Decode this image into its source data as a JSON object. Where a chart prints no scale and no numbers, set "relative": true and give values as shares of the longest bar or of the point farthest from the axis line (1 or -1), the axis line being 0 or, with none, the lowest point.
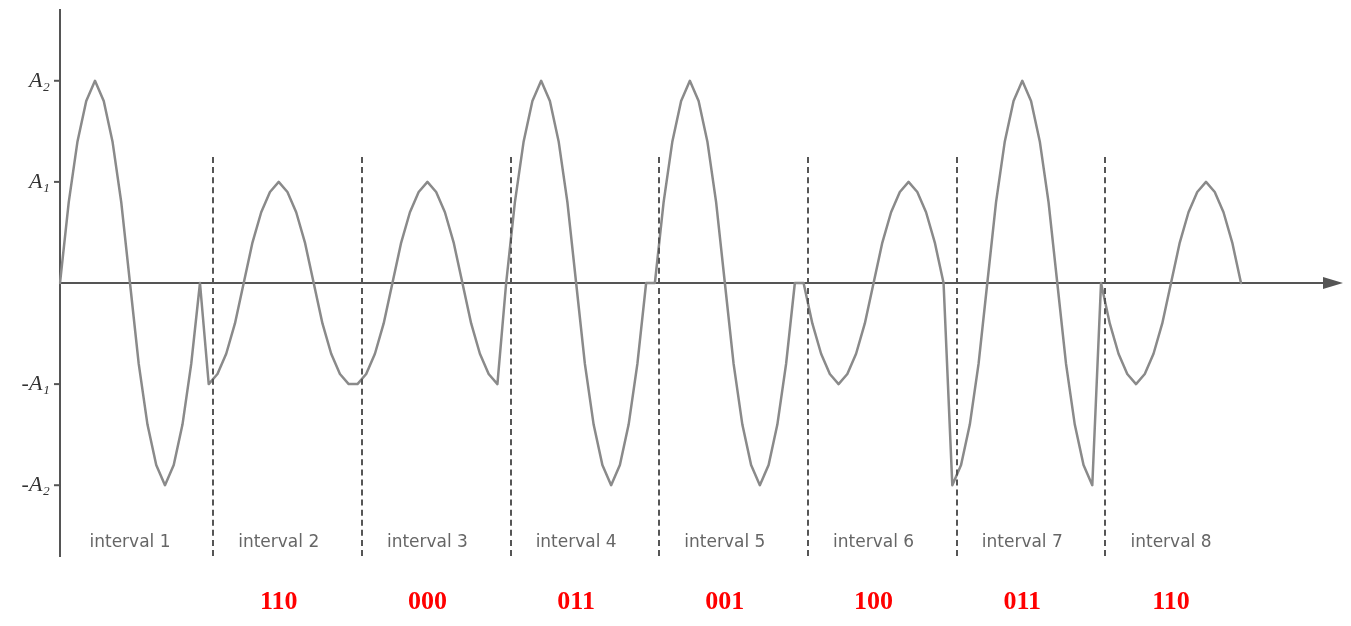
{
  "chart_data": {
    "type": "line",
    "categories": [
      null,
      null,
      null,
      null,
      null,
      null,
      null,
      null,
      "interval 1",
      null,
      null,
      null,
      null,
      null,
      null,
      null,
      null,
      null,
      null,
      null,
      null,
      null,
      null,
      null,
      null,
      "interval 2",
      null,
      null,
      null,
      null,
      null,
      null,
      null,
      null,
      null,
      null,
      null,
      null,
      null,
      null,
      null,
      null,
      "interval 3",
      null,
      null,
      null,
      null,
      null,
      null,
      null,
      null,
      null,
      null,
      null,
      null,
      null,
      null,
      null,
      null,
      "interval 4",
      null,
      null,
      null,
      null,
      null,
      null,
      null,
      null,
      null,
      null,
      null,
      null,
      null,
      null,
      null,
      null,
      "interval 5",
      null,
      null,
      null,
      null,
      null,
      null,
      null,
      null,
      null,
      null,
      null,
      null,
      null,
      null,
      null,
      null,
      "interval 6",
      null,
      null,
      null,
      null,
      null,
      null,
      null,
      null,
      null,
      null,
      null,
      null,
      null,
      null,
      null,
      null,
      "interval 7",
      null,
      null,
      null,
      null,
      null,
      null,
      null,
      null,
      null,
      null,
      null,
      null,
      null,
      null,
      null,
      null,
      "interval 8",
      null,
      null,
      null,
      null,
      null,
      null,
      null,
      null
    ],
    "series": [
      {
        "color": "#8a8a8a",
        "values": [
          0,
          0.4,
          0.7,
          0.9,
          1,
          0.9,
          0.7,
          0.4,
          0,
          -0.4,
          -0.7,
          -0.9,
          -1,
          -0.9,
          -0.7,
          -0.4,
          0,
          -0.5,
          -0.45,
          -0.35,
          -0.2,
          0,
          0.2,
          0.35,
          0.45,
          0.5,
          0.45,
          0.35,
          0.2,
          0,
          -0.2,
          -0.35,
          -0.45,
          -0.5,
          -0.5,
          -0.45,
          -0.35,
          -0.2,
          0,
          0.2,
          0.35,
          0.45,
          0.5,
          0.45,
          0.35,
          0.2,
          0,
          -0.2,
          -0.35,
          -0.45,
          -0.5,
          0,
          0.4,
          0.7,
          0.9,
          1,
          0.9,
          0.7,
          0.4,
          0,
          -0.4,
          -0.7,
          -0.9,
          -1,
          -0.9,
          -0.7,
          -0.4,
          0,
          0,
          0.4,
          0.7,
          0.9,
          1,
          0.9,
          0.7,
          0.4,
          0,
          -0.4,
          -0.7,
          -0.9,
          -1,
          -0.9,
          -0.7,
          -0.4,
          0,
          0,
          -0.2,
          -0.35,
          -0.45,
          -0.5,
          -0.45,
          -0.35,
          -0.2,
          0,
          0.2,
          0.35,
          0.45,
          0.5,
          0.45,
          0.35,
          0.2,
          0,
          -1,
          -0.9,
          -0.7,
          -0.4,
          0,
          0.4,
          0.7,
          0.9,
          1,
          0.9,
          0.7,
          0.4,
          0,
          -0.4,
          -0.7,
          -0.9,
          -1,
          0,
          -0.2,
          -0.35,
          -0.45,
          -0.5,
          -0.45,
          -0.35,
          -0.2,
          0,
          0.2,
          0.35,
          0.45,
          0.5,
          0.45,
          0.35,
          0.2,
          0
        ]
      }
    ],
    "relative": true,
    "annotations": [
      "A₂",
      "A₁",
      "-A₁",
      "-A₂",
      "110",
      "000",
      "011",
      "001",
      "100",
      "011",
      "110"
    ],
    "grid": false,
    "marker": "none",
    "line_style": "solid"
  }
}
